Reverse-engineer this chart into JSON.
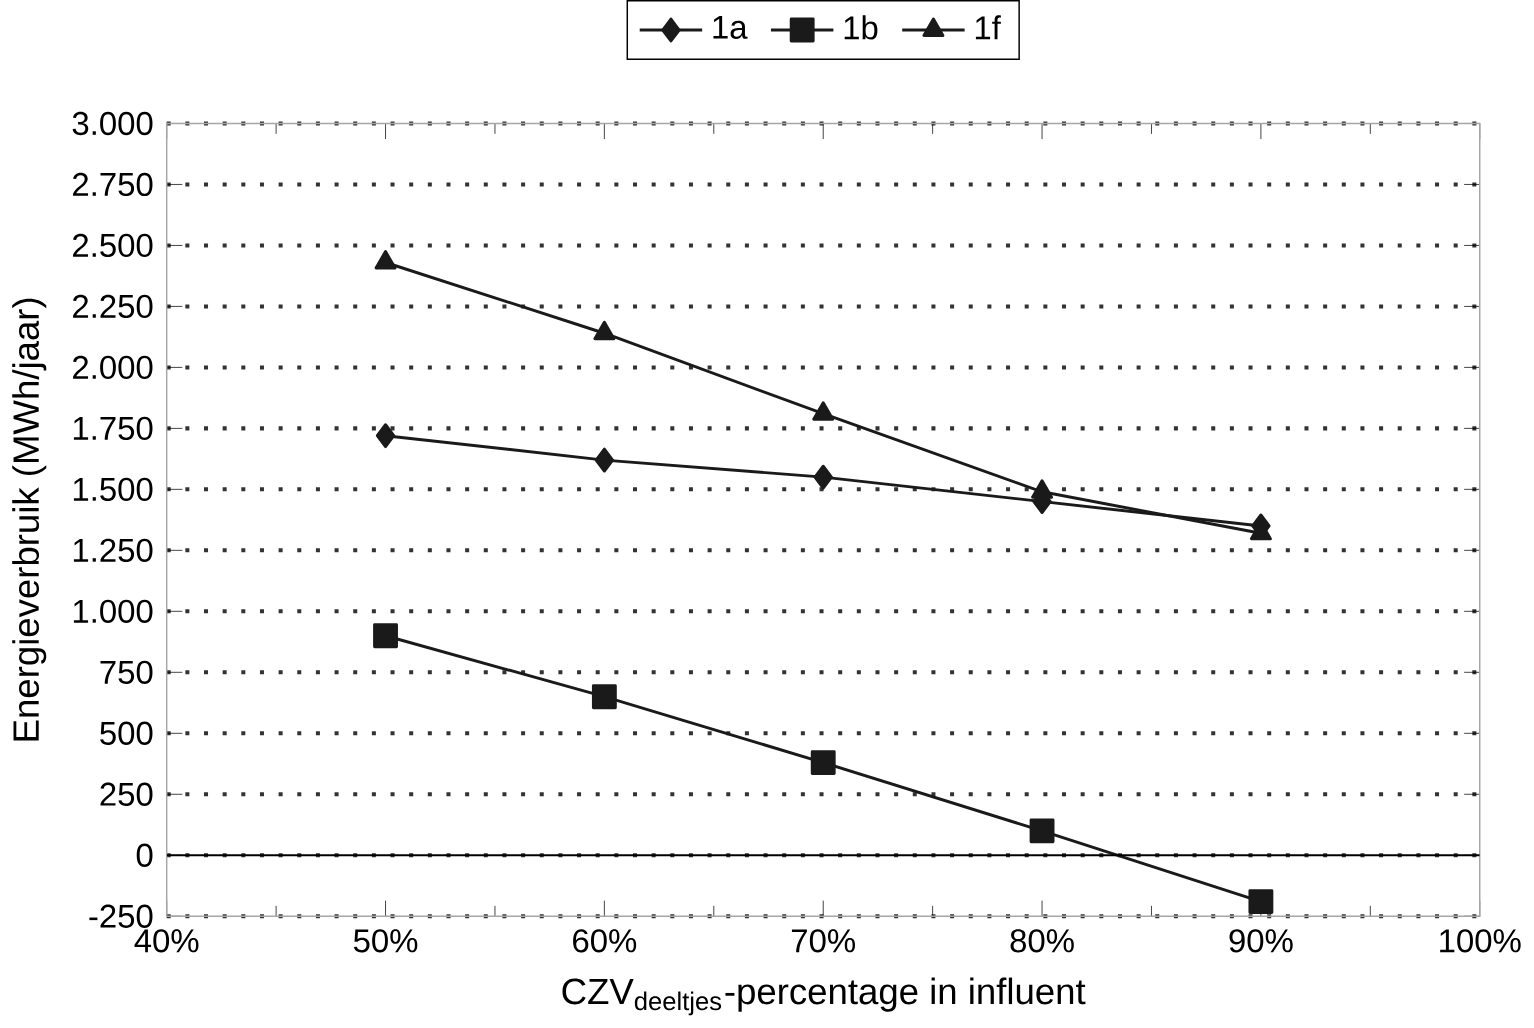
{
  "chart_data": {
    "type": "line",
    "xlabel": "CZV$_{deeltjes}$-percentage in influent",
    "ylabel": "Energieverbruik (MWh/jaar)",
    "x": [
      50,
      60,
      70,
      80,
      90
    ],
    "series": [
      {
        "name": "1a",
        "color": "#1a1a1a",
        "marker": "diamond",
        "values": [
          1720,
          1620,
          1550,
          1450,
          1350
        ]
      },
      {
        "name": "1b",
        "color": "#1a1a1a",
        "marker": "square",
        "values": [
          900,
          650,
          380,
          100,
          -190
        ]
      },
      {
        "name": "1f",
        "color": "#1a1a1a",
        "marker": "triangle",
        "values": [
          2430,
          2140,
          1810,
          1490,
          1320
        ]
      }
    ],
    "xlim": [
      40,
      100
    ],
    "xticks": [
      {
        "value": 40,
        "label": "40%"
      },
      {
        "value": 50,
        "label": "50%"
      },
      {
        "value": 60,
        "label": "60%"
      },
      {
        "value": 70,
        "label": "70%"
      },
      {
        "value": 80,
        "label": "80%"
      },
      {
        "value": 90,
        "label": "90%"
      },
      {
        "value": 100,
        "label": "100%"
      }
    ],
    "ylim": [
      -250,
      3000
    ],
    "yticks": [
      -250,
      0,
      250,
      500,
      750,
      {
        "value": 1000,
        "label": "1.000"
      },
      {
        "value": 1250,
        "label": "1.250"
      },
      {
        "value": 1500,
        "label": "1.500"
      },
      {
        "value": 1750,
        "label": "1.750"
      },
      {
        "value": 2000,
        "label": "2.000"
      },
      {
        "value": 2250,
        "label": "2.250"
      },
      {
        "value": 2500,
        "label": "2.500"
      },
      {
        "value": 2750,
        "label": "2.750"
      },
      {
        "value": 3000,
        "label": "3.000"
      }
    ],
    "ref_lines": [
      {
        "axis": "y",
        "value": 0,
        "color": "#000000"
      }
    ],
    "grid": "y",
    "legend": "top",
    "line_style": "solid"
  }
}
